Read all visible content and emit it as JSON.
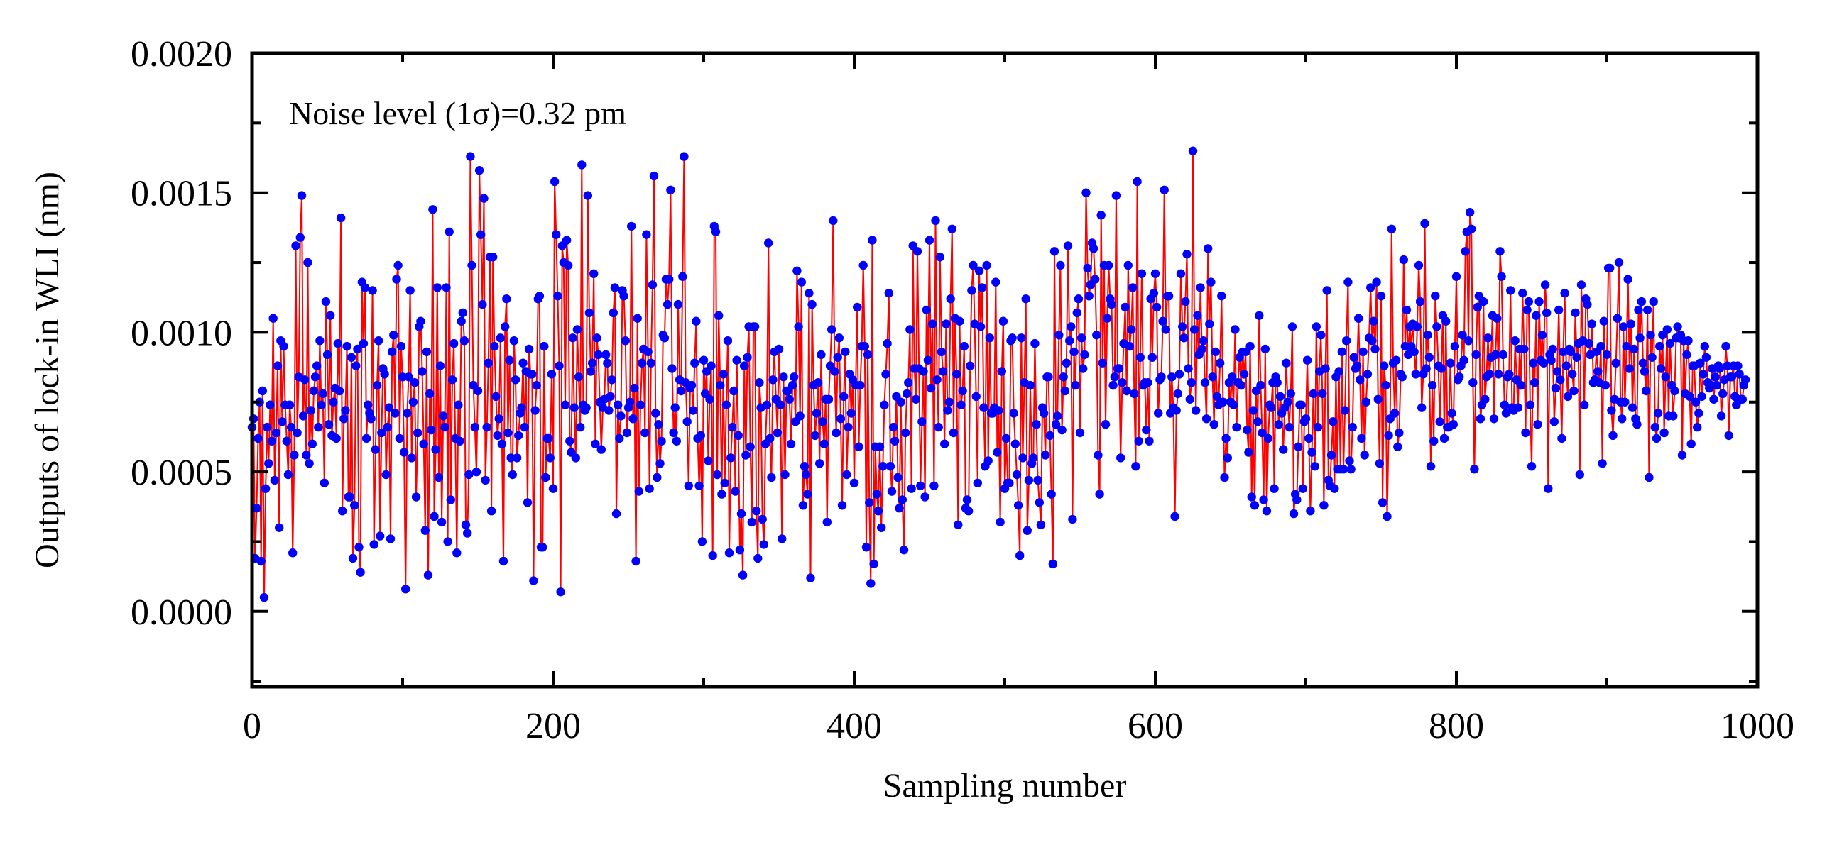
{
  "chart_data": {
    "type": "line",
    "title": "",
    "xlabel": "Sampling number",
    "ylabel": "Outputs of lock-in WLI (nm)",
    "xlim": [
      0,
      1000
    ],
    "ylim": [
      -0.00027,
      0.002
    ],
    "x_ticks": [
      0,
      200,
      400,
      600,
      800,
      1000
    ],
    "x_tick_labels": [
      "0",
      "200",
      "400",
      "600",
      "800",
      "1000"
    ],
    "y_ticks": [
      0.0,
      0.0005,
      0.001,
      0.0015,
      0.002
    ],
    "y_tick_labels": [
      "0.0000",
      "0.0005",
      "0.0010",
      "0.0015",
      "0.0020"
    ],
    "grid": false,
    "legend": "none",
    "annotation": "Noise level (1σ)=0.32 pm",
    "series": [
      {
        "line_color": "#ff0000",
        "marker_color": "#0000ff",
        "marker": "circle",
        "n_points": 1000,
        "x_start": 0,
        "x_step": 1,
        "mean": 0.00075,
        "std": 0.00032,
        "values": [
          0.00066,
          0.00069,
          0.00019,
          0.00037,
          0.00062,
          0.00075,
          0.00018,
          0.00079,
          5e-05,
          0.00044,
          0.00066,
          0.00053,
          0.00074,
          0.00061,
          0.00105,
          0.00047,
          0.00064,
          0.00088,
          0.0003,
          0.00097,
          0.00068,
          0.00095,
          0.00074,
          0.00061,
          0.00049,
          0.00074,
          0.00066,
          0.00021,
          0.00056,
          0.00131,
          0.00064,
          0.00084,
          0.00134,
          0.00149,
          0.0007,
          0.00083,
          0.00056,
          0.00125,
          0.00053,
          0.00072,
          0.0006,
          0.00079,
          0.00084,
          0.00088,
          0.00066,
          0.00097,
          0.00074,
          0.00078,
          0.00046,
          0.00111,
          0.00092,
          0.00067,
          0.00106,
          0.00063,
          0.00075,
          0.0008,
          0.00062,
          0.00096,
          0.00079,
          0.00141,
          0.00036,
          0.00069,
          0.00072,
          0.00095,
          0.00041,
          0.00041,
          0.00091,
          0.00019,
          0.00038,
          0.00088,
          0.00094,
          0.00023,
          0.00014,
          0.00118,
          0.00096,
          0.00116,
          0.00062,
          0.00074,
          0.00071,
          0.00069,
          0.00115,
          0.00024,
          0.00058,
          0.00081,
          0.00097,
          0.00027,
          0.00064,
          0.00087,
          0.00085,
          0.00049,
          0.00066,
          0.00073,
          0.00026,
          0.00093,
          0.00099,
          0.00071,
          0.00119,
          0.00124,
          0.00062,
          0.00095,
          0.00084,
          0.00057,
          8e-05,
          0.00071,
          0.00084,
          0.00115,
          0.00055,
          0.00075,
          0.00082,
          0.00041,
          0.00064,
          0.00102,
          0.00104,
          0.00086,
          0.0006,
          0.00029,
          0.00093,
          0.00013,
          0.00078,
          0.00065,
          0.00144,
          0.00034,
          0.00058,
          0.00116,
          0.00048,
          0.00088,
          0.00032,
          0.0007,
          0.00066,
          0.00116,
          0.00025,
          0.00136,
          0.0004,
          0.00083,
          0.00096,
          0.00062,
          0.00021,
          0.00074,
          0.00061,
          0.00104,
          0.00107,
          0.00097,
          0.00031,
          0.00028,
          0.00049,
          0.00163,
          0.00124,
          0.00081,
          0.00066,
          0.0005,
          0.00079,
          0.00158,
          0.00135,
          0.0011,
          0.00148,
          0.00047,
          0.00066,
          0.00089,
          0.00127,
          0.00036,
          0.00127,
          0.00095,
          0.00077,
          0.00063,
          0.00069,
          0.00098,
          0.0006,
          0.00018,
          0.00102,
          0.00112,
          0.00064,
          0.0009,
          0.00055,
          0.00049,
          0.00097,
          0.00083,
          0.00055,
          0.00063,
          0.00071,
          0.00073,
          0.00089,
          0.00066,
          0.00086,
          0.00039,
          0.00094,
          0.00085,
          0.00085,
          0.00011,
          0.00072,
          0.00081,
          0.00112,
          0.00113,
          0.00023,
          0.00023,
          0.00095,
          0.00048,
          0.00062,
          0.00062,
          0.00055,
          0.00085,
          0.00044,
          0.00154,
          0.00135,
          0.00113,
          0.00088,
          7e-05,
          0.00131,
          0.00125,
          0.00074,
          0.00133,
          0.00124,
          0.00061,
          0.00057,
          0.00098,
          0.00073,
          0.00055,
          0.00101,
          0.00084,
          0.00066,
          0.0016,
          0.00074,
          0.00072,
          0.00073,
          0.00149,
          0.00107,
          0.00086,
          0.00089,
          0.00121,
          0.0006,
          0.00098,
          0.00092,
          0.00075,
          0.00058,
          0.00073,
          0.00076,
          0.00092,
          0.00089,
          0.00072,
          0.00077,
          0.00083,
          0.00107,
          0.00116,
          0.00035,
          0.00074,
          0.00062,
          0.0007,
          0.00115,
          0.00113,
          0.00097,
          0.00064,
          0.00073,
          0.00075,
          0.00138,
          0.00069,
          0.0008,
          0.00018,
          0.00105,
          0.00043,
          0.00074,
          0.00089,
          0.00094,
          0.00064,
          0.00135,
          0.00093,
          0.00044,
          0.00089,
          0.00117,
          0.00156,
          0.00071,
          0.00048,
          0.00067,
          0.00053,
          0.00061,
          0.00099,
          0.00098,
          0.00119,
          0.0011,
          0.00119,
          0.00151,
          0.00087,
          0.00064,
          0.00073,
          0.00061,
          0.0011,
          0.00083,
          0.00079,
          0.0012,
          0.00163,
          0.00082,
          0.00068,
          0.00045,
          0.0008,
          0.00081,
          0.00072,
          0.00089,
          0.00104,
          0.00062,
          0.00045,
          0.00063,
          0.00025,
          0.0009,
          0.00078,
          0.00086,
          0.00054,
          0.00076,
          0.00088,
          0.0002,
          0.00138,
          0.00136,
          0.00049,
          0.00106,
          0.00081,
          0.00042,
          0.00085,
          0.00046,
          0.00074,
          0.00097,
          0.00021,
          0.00055,
          0.00066,
          0.00079,
          0.00043,
          0.0009,
          0.00063,
          0.00022,
          0.00035,
          0.00013,
          0.00088,
          0.00056,
          0.00091,
          0.00102,
          0.00059,
          0.00032,
          0.00102,
          0.00102,
          0.00036,
          0.00019,
          0.00082,
          0.00073,
          0.00033,
          0.00024,
          0.0006,
          0.00074,
          0.00132,
          0.00062,
          0.00048,
          0.00083,
          0.00093,
          0.00076,
          0.00064,
          0.00094,
          0.00074,
          0.00026,
          0.00084,
          0.00049,
          0.00079,
          0.00079,
          0.00076,
          0.0006,
          0.00081,
          0.00084,
          0.00068,
          0.00122,
          0.00102,
          0.0007,
          0.00118,
          0.00038,
          0.00052,
          0.00049,
          0.00042,
          0.00114,
          0.00012,
          0.0011,
          0.00081,
          0.00063,
          0.00071,
          0.00082,
          0.00053,
          0.00092,
          0.00068,
          0.0006,
          0.00076,
          0.00032,
          0.00076,
          0.00088,
          0.00101,
          0.0014,
          0.00086,
          0.00064,
          0.00091,
          0.00098,
          0.00069,
          0.00038,
          0.00077,
          0.00093,
          0.00049,
          0.00066,
          0.00085,
          0.00071,
          0.00083,
          0.00046,
          0.00081,
          0.00109,
          0.00059,
          0.00081,
          0.00095,
          0.00124,
          0.00095,
          0.00023,
          0.00092,
          0.00039,
          0.0001,
          0.00133,
          0.00017,
          0.00059,
          0.00042,
          0.00036,
          0.00059,
          0.0003,
          0.00052,
          0.00074,
          0.00085,
          0.00096,
          0.00114,
          0.00052,
          0.00043,
          0.00066,
          0.00061,
          0.00077,
          0.00048,
          0.00037,
          0.00075,
          0.0004,
          0.00022,
          0.00064,
          0.00078,
          0.00082,
          0.00101,
          0.00044,
          0.00131,
          0.00087,
          0.00076,
          0.00129,
          0.00087,
          0.00045,
          0.00068,
          0.00086,
          0.00041,
          0.00108,
          0.0009,
          0.00133,
          0.0008,
          0.00103,
          0.00045,
          0.0014,
          0.00083,
          0.00066,
          0.00127,
          0.00093,
          0.00086,
          0.0006,
          0.00103,
          0.00072,
          0.00075,
          0.00112,
          0.00137,
          0.00064,
          0.00105,
          0.00085,
          0.00031,
          0.00104,
          0.00074,
          0.00079,
          0.00095,
          0.00037,
          0.0004,
          0.00036,
          0.00088,
          0.00115,
          0.00124,
          0.00103,
          0.00077,
          0.00046,
          0.00122,
          0.00102,
          0.00116,
          0.00073,
          0.00052,
          0.00124,
          0.00054,
          0.00098,
          0.00071,
          0.00071,
          0.00073,
          0.00118,
          0.00057,
          0.00072,
          0.00032,
          0.00086,
          0.00104,
          0.00044,
          0.00062,
          0.00046,
          0.00046,
          0.00097,
          0.00098,
          0.00071,
          0.0006,
          0.00049,
          0.00038,
          0.0002,
          0.00098,
          0.00055,
          0.00082,
          0.00112,
          0.00029,
          0.00047,
          0.00081,
          0.00053,
          0.00055,
          0.00096,
          0.00067,
          0.00047,
          0.00039,
          0.00031,
          0.00073,
          0.00071,
          0.00056,
          0.00084,
          0.00084,
          0.00063,
          0.00042,
          0.00017,
          0.00129,
          0.00067,
          0.0007,
          0.00099,
          0.00124,
          0.00065,
          0.00084,
          0.00079,
          0.00089,
          0.00131,
          0.00097,
          0.00102,
          0.00033,
          0.00093,
          0.00081,
          0.00107,
          0.00112,
          0.00064,
          0.00098,
          0.00087,
          0.00092,
          0.0015,
          0.00123,
          0.00113,
          0.00117,
          0.00132,
          0.0013,
          0.00119,
          0.00099,
          0.00056,
          0.00042,
          0.00142,
          0.00089,
          0.00124,
          0.00067,
          0.00105,
          0.00124,
          0.00112,
          0.0011,
          0.00081,
          0.00084,
          0.00149,
          0.00087,
          0.00087,
          0.00055,
          0.00082,
          0.00096,
          0.00109,
          0.00079,
          0.00124,
          0.00095,
          0.00101,
          0.00116,
          0.00078,
          0.00052,
          0.00154,
          0.00061,
          0.00091,
          0.00121,
          0.00081,
          0.00082,
          0.00065,
          0.00082,
          0.00061,
          0.00112,
          0.00091,
          0.00114,
          0.00121,
          0.00109,
          0.00071,
          0.00083,
          0.00084,
          0.00104,
          0.00151,
          0.00101,
          0.00113,
          0.00113,
          0.00071,
          0.00084,
          0.00073,
          0.00034,
          0.00072,
          0.00078,
          0.00085,
          0.00121,
          0.00102,
          0.00098,
          0.00111,
          0.00128,
          0.00087,
          0.00076,
          0.00082,
          0.00165,
          0.00101,
          0.00072,
          0.00106,
          0.00092,
          0.00116,
          0.00094,
          0.00097,
          0.00082,
          0.00069,
          0.0013,
          0.00103,
          0.00118,
          0.00084,
          0.00067,
          0.00093,
          0.00077,
          0.00074,
          0.00089,
          0.00113,
          0.00075,
          0.00048,
          0.00062,
          0.00055,
          0.00082,
          0.00075,
          0.00084,
          0.00074,
          0.00101,
          0.00066,
          0.00082,
          0.00091,
          0.00081,
          0.00093,
          0.00085,
          0.00093,
          0.00065,
          0.00057,
          0.00095,
          0.00041,
          0.00072,
          0.00038,
          0.00079,
          0.00068,
          0.00106,
          0.00081,
          0.00064,
          0.0004,
          0.00094,
          0.00036,
          0.00062,
          0.00074,
          0.00073,
          0.00082,
          0.00044,
          0.00084,
          0.00082,
          0.00067,
          0.00077,
          0.00071,
          0.00058,
          0.00073,
          0.00089,
          0.00075,
          0.00066,
          0.00078,
          0.00102,
          0.00035,
          0.00042,
          0.0004,
          0.00059,
          0.00074,
          0.00074,
          0.00044,
          0.00068,
          0.00069,
          0.0009,
          0.00062,
          0.00036,
          0.00057,
          0.00078,
          0.00052,
          0.00102,
          0.00066,
          0.00086,
          0.00099,
          0.00078,
          0.00038,
          0.00087,
          0.00115,
          0.00047,
          0.00045,
          0.00056,
          0.00068,
          0.00044,
          0.00084,
          0.00051,
          0.00086,
          0.00051,
          0.00093,
          0.00051,
          0.00072,
          0.00097,
          0.00118,
          0.00054,
          0.00051,
          0.00066,
          0.00091,
          0.00087,
          0.00088,
          0.00105,
          0.00083,
          0.00062,
          0.00093,
          0.00056,
          0.00075,
          0.00085,
          0.00098,
          0.00116,
          0.00097,
          0.00104,
          0.00094,
          0.00118,
          0.00076,
          0.00053,
          0.00113,
          0.00039,
          0.00088,
          0.00081,
          0.00034,
          0.00063,
          0.00069,
          0.00137,
          0.00089,
          0.00071,
          0.0009,
          0.00059,
          0.00064,
          0.00085,
          0.00084,
          0.00126,
          0.00095,
          0.00108,
          0.00092,
          0.00102,
          0.00095,
          0.00103,
          0.00093,
          0.00085,
          0.00102,
          0.00124,
          0.00111,
          0.00073,
          0.00085,
          0.00139,
          0.00087,
          0.00099,
          0.00091,
          0.00052,
          0.00081,
          0.00061,
          0.00113,
          0.00102,
          0.00088,
          0.00068,
          0.00087,
          0.00106,
          0.00062,
          0.00104,
          0.00066,
          0.00066,
          0.00089,
          0.00071,
          0.00067,
          0.00095,
          0.0012,
          0.00083,
          0.00084,
          0.00088,
          0.00099,
          0.0009,
          0.00129,
          0.00136,
          0.00097,
          0.00143,
          0.00137,
          0.00082,
          0.00051,
          0.00092,
          0.00109,
          0.00113,
          0.00069,
          0.00074,
          0.00111,
          0.00076,
          0.00084,
          0.00098,
          0.00085,
          0.00091,
          0.00106,
          0.00069,
          0.00092,
          0.00105,
          0.00085,
          0.00129,
          0.0012,
          0.00092,
          0.00074,
          0.00071,
          0.00084,
          0.00085,
          0.00115,
          0.00073,
          0.00072,
          0.00097,
          0.00083,
          0.00073,
          0.00094,
          0.00081,
          0.00114,
          0.00094,
          0.00064,
          0.00108,
          0.00111,
          0.00074,
          0.00052,
          0.00089,
          0.00082,
          0.00106,
          0.00067,
          0.00111,
          0.0009,
          0.00099,
          0.00089,
          0.00117,
          0.00107,
          0.00044,
          0.00092,
          0.0009,
          0.00094,
          0.00068,
          0.0008,
          0.00086,
          0.00108,
          0.00083,
          0.00062,
          0.00093,
          0.00114,
          0.00088,
          0.00077,
          0.00094,
          0.00093,
          0.00085,
          0.00079,
          0.00107,
          0.00091,
          0.00096,
          0.00049,
          0.00117,
          0.00097,
          0.00074,
          0.00112,
          0.0011,
          0.00096,
          0.00092,
          0.00103,
          0.00082,
          0.00083,
          0.00093,
          0.00086,
          0.00082,
          0.00095,
          0.00053,
          0.00104,
          0.00081,
          0.00092,
          0.00123,
          0.00123,
          0.00072,
          0.00063,
          0.00076,
          0.00089,
          0.00105,
          0.00125,
          0.00075,
          0.00069,
          0.00102,
          0.00075,
          0.00095,
          0.00119,
          0.00087,
          0.00103,
          0.00073,
          0.00094,
          0.00069,
          0.00067,
          0.00108,
          0.00098,
          0.00111,
          0.00089,
          0.00086,
          0.00079,
          0.00108,
          0.00048,
          0.00099,
          0.00091,
          0.00111,
          0.00066,
          0.00062,
          0.00071,
          0.00095,
          0.00087,
          0.00099,
          0.00064,
          0.00084,
          0.00101,
          0.0007,
          0.00096,
          0.00081,
          0.0007,
          0.00079,
          0.00098,
          0.00102,
          0.00098,
          0.00099,
          0.00056,
          0.00097,
          0.00078,
          0.00092,
          0.00097,
          0.00077,
          0.0006,
          0.00088,
          0.00088,
          0.00075,
          0.00066,
          0.00071,
          0.00089,
          0.00077,
          0.00085,
          0.00095,
          0.00091,
          0.00082,
          0.0008,
          0.00081,
          0.00087,
          0.00076,
          0.00084,
          0.00081,
          0.00088,
          0.00087,
          0.0007,
          0.00078,
          0.00083,
          0.00095,
          0.00088,
          0.00063,
          0.00084,
          0.00084,
          0.00088,
          0.00077,
          0.00074,
          0.00088,
          0.00085,
          0.00076,
          0.00076,
          0.00081,
          0.00083
        ]
      }
    ]
  }
}
